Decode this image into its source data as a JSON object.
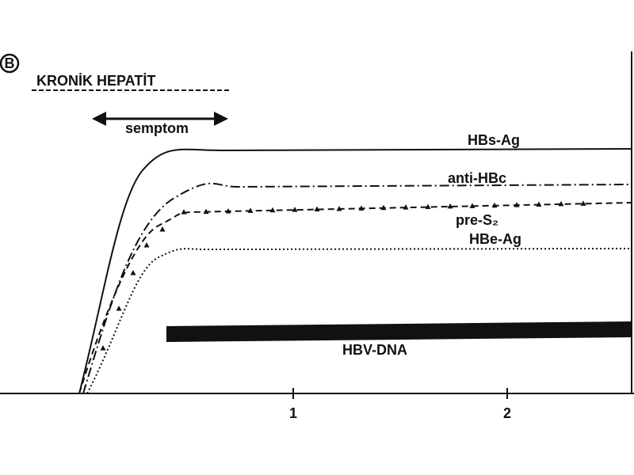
{
  "panel_label": "B",
  "title": "KRONİK HEPATİT",
  "symptom_label": "semptom",
  "curves": [
    {
      "label": "HBs-Ag"
    },
    {
      "label": "anti-HBc"
    },
    {
      "label": "pre-S₂"
    },
    {
      "label": "HBe-Ag"
    },
    {
      "label": "HBV-DNA"
    }
  ],
  "x_axis": {
    "ticks": [
      "1",
      "2"
    ]
  }
}
